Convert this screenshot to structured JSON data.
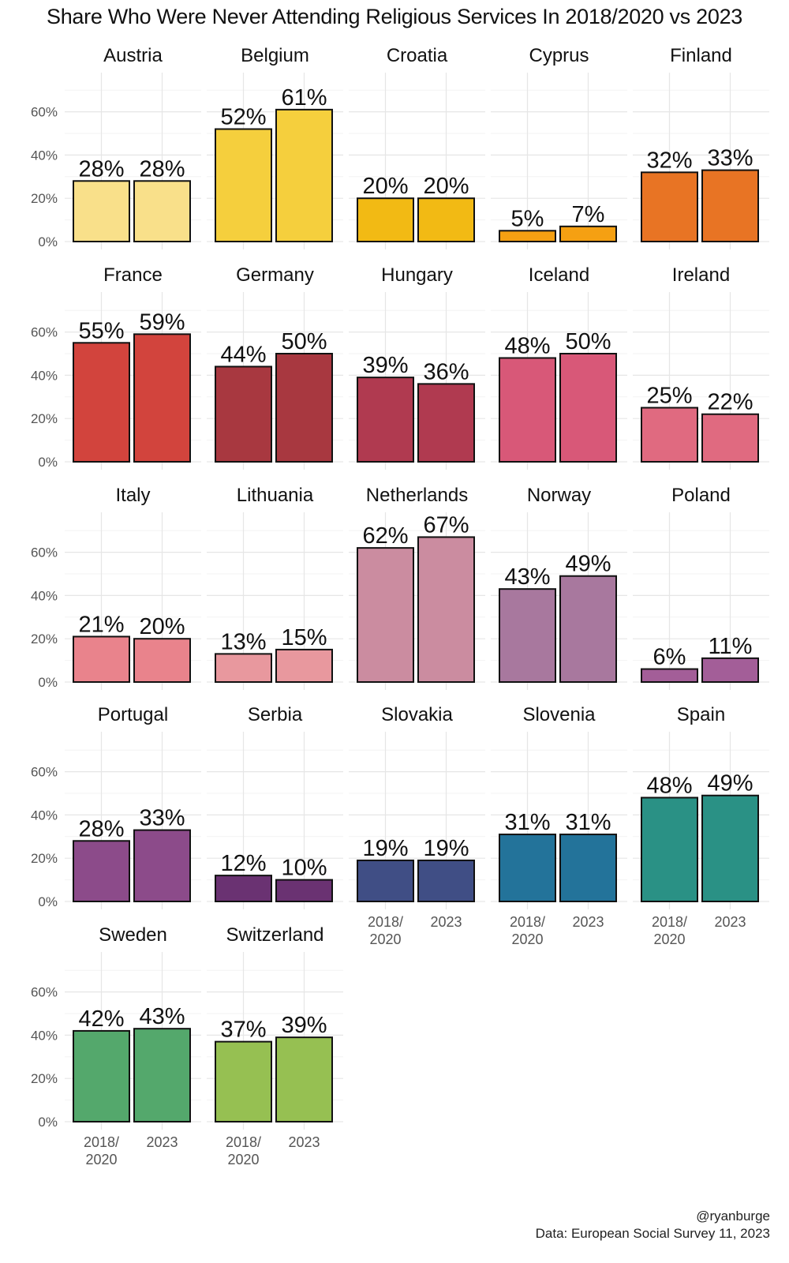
{
  "chart_data": {
    "type": "bar",
    "title": "Share Who Were Never Attending Religious Services In 2018/2020 vs 2023",
    "xlabel": "",
    "ylabel": "",
    "ylim": [
      0,
      0.75
    ],
    "yticks": [
      0,
      0.2,
      0.4,
      0.6
    ],
    "ytick_labels": [
      "0%",
      "20%",
      "40%",
      "60%"
    ],
    "categories": [
      "2018/\n2020",
      "2023"
    ],
    "category_labels": [
      [
        "2018/",
        "2020"
      ],
      [
        "2023"
      ]
    ],
    "grid": true,
    "legend": "none",
    "facets": [
      {
        "name": "Austria",
        "values": [
          0.28,
          0.28
        ],
        "labels": [
          "28%",
          "28%"
        ],
        "color": "#F9E08A"
      },
      {
        "name": "Belgium",
        "values": [
          0.52,
          0.61
        ],
        "labels": [
          "52%",
          "61%"
        ],
        "color": "#F5CF3D"
      },
      {
        "name": "Croatia",
        "values": [
          0.2,
          0.2
        ],
        "labels": [
          "20%",
          "20%"
        ],
        "color": "#F2BA14"
      },
      {
        "name": "Cyprus",
        "values": [
          0.05,
          0.07
        ],
        "labels": [
          "5%",
          "7%"
        ],
        "color": "#F5A012"
      },
      {
        "name": "Finland",
        "values": [
          0.32,
          0.33
        ],
        "labels": [
          "32%",
          "33%"
        ],
        "color": "#E87424"
      },
      {
        "name": "France",
        "values": [
          0.55,
          0.59
        ],
        "labels": [
          "55%",
          "59%"
        ],
        "color": "#D2443D"
      },
      {
        "name": "Germany",
        "values": [
          0.44,
          0.5
        ],
        "labels": [
          "44%",
          "50%"
        ],
        "color": "#A83840"
      },
      {
        "name": "Hungary",
        "values": [
          0.39,
          0.36
        ],
        "labels": [
          "39%",
          "36%"
        ],
        "color": "#B03A50"
      },
      {
        "name": "Iceland",
        "values": [
          0.48,
          0.5
        ],
        "labels": [
          "48%",
          "50%"
        ],
        "color": "#D85878"
      },
      {
        "name": "Ireland",
        "values": [
          0.25,
          0.22
        ],
        "labels": [
          "25%",
          "22%"
        ],
        "color": "#E06A80"
      },
      {
        "name": "Italy",
        "values": [
          0.21,
          0.2
        ],
        "labels": [
          "21%",
          "20%"
        ],
        "color": "#E9838C"
      },
      {
        "name": "Lithuania",
        "values": [
          0.13,
          0.15
        ],
        "labels": [
          "13%",
          "15%"
        ],
        "color": "#E8989E"
      },
      {
        "name": "Netherlands",
        "values": [
          0.62,
          0.67
        ],
        "labels": [
          "62%",
          "67%"
        ],
        "color": "#CB8CA0"
      },
      {
        "name": "Norway",
        "values": [
          0.43,
          0.49
        ],
        "labels": [
          "43%",
          "49%"
        ],
        "color": "#A8789E"
      },
      {
        "name": "Poland",
        "values": [
          0.06,
          0.11
        ],
        "labels": [
          "6%",
          "11%"
        ],
        "color": "#A35E98"
      },
      {
        "name": "Portugal",
        "values": [
          0.28,
          0.33
        ],
        "labels": [
          "28%",
          "33%"
        ],
        "color": "#8C4B8A"
      },
      {
        "name": "Serbia",
        "values": [
          0.12,
          0.1
        ],
        "labels": [
          "12%",
          "10%"
        ],
        "color": "#6A3272"
      },
      {
        "name": "Slovakia",
        "values": [
          0.19,
          0.19
        ],
        "labels": [
          "19%",
          "19%"
        ],
        "color": "#404E85"
      },
      {
        "name": "Slovenia",
        "values": [
          0.31,
          0.31
        ],
        "labels": [
          "31%",
          "31%"
        ],
        "color": "#23739A"
      },
      {
        "name": "Spain",
        "values": [
          0.48,
          0.49
        ],
        "labels": [
          "48%",
          "49%"
        ],
        "color": "#2A9185"
      },
      {
        "name": "Sweden",
        "values": [
          0.42,
          0.43
        ],
        "labels": [
          "42%",
          "43%"
        ],
        "color": "#54A86C"
      },
      {
        "name": "Switzerland",
        "values": [
          0.37,
          0.39
        ],
        "labels": [
          "37%",
          "39%"
        ],
        "color": "#96C052"
      }
    ]
  },
  "caption": {
    "credit": "@ryanburge",
    "source": "Data: European Social Survey 11, 2023"
  }
}
